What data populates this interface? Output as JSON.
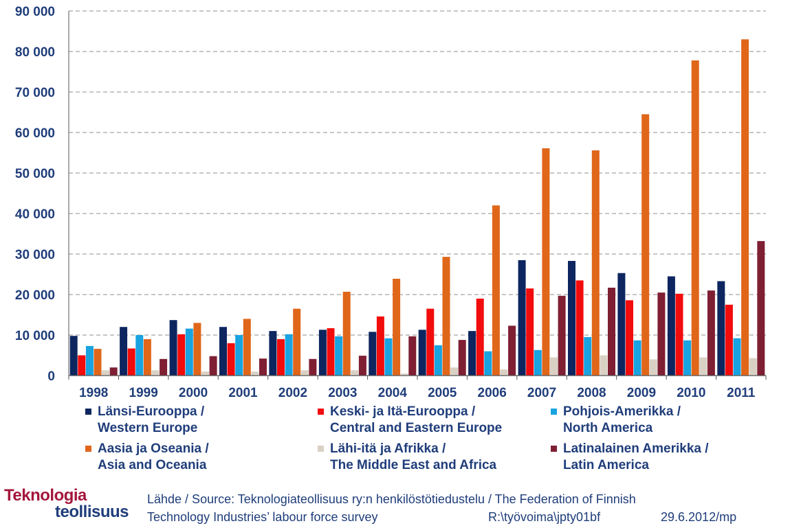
{
  "chart_data": {
    "type": "bar",
    "categories": [
      "1998",
      "1999",
      "2000",
      "2001",
      "2002",
      "2003",
      "2004",
      "2005",
      "2006",
      "2007",
      "2008",
      "2009",
      "2010",
      "2011"
    ],
    "ylim": [
      0,
      90000
    ],
    "yticks": [
      "0",
      "10 000",
      "20 000",
      "30 000",
      "40 000",
      "50 000",
      "60 000",
      "70 000",
      "80 000",
      "90 000"
    ],
    "grid": true,
    "legend_placement": "bottom",
    "series": [
      {
        "name_fi": "Länsi-Eurooppa /",
        "name_en": "Western Europe",
        "color": "#0d2660",
        "values": [
          9800,
          12000,
          13700,
          12000,
          11000,
          11300,
          10800,
          11300,
          11000,
          28500,
          28300,
          25300,
          24500,
          23300
        ]
      },
      {
        "name_fi": "Keski- ja Itä-Eurooppa /",
        "name_en": "Central and Eastern Europe",
        "color": "#f20c0c",
        "values": [
          5000,
          6700,
          10200,
          8000,
          9000,
          11700,
          14600,
          16500,
          19000,
          21500,
          23500,
          18600,
          20200,
          17500
        ]
      },
      {
        "name_fi": "Pohjois-Amerikka /",
        "name_en": "North America",
        "color": "#19a3e0",
        "values": [
          7300,
          10000,
          11600,
          10000,
          10200,
          9700,
          9200,
          7500,
          6000,
          6300,
          9500,
          8700,
          8700,
          9200
        ]
      },
      {
        "name_fi": "Aasia ja Oseania /",
        "name_en": "Asia and Oceania",
        "color": "#e0661a",
        "values": [
          6600,
          9000,
          13000,
          14000,
          16500,
          20700,
          23900,
          29300,
          42000,
          56100,
          55600,
          64500,
          77800,
          83000
        ]
      },
      {
        "name_fi": "Lähi-itä ja Afrikka /",
        "name_en": "The Middle East and Africa",
        "color": "#d9d1c4",
        "values": [
          1300,
          1300,
          1000,
          1000,
          1300,
          1300,
          500,
          2000,
          1500,
          4500,
          5000,
          4000,
          4500,
          4300
        ]
      },
      {
        "name_fi": "Latinalainen Amerikka /",
        "name_en": "Latin America",
        "color": "#7f1f33",
        "values": [
          2000,
          4100,
          4800,
          4200,
          4100,
          4900,
          9700,
          8800,
          12300,
          19700,
          21700,
          20500,
          21000,
          33200
        ]
      }
    ]
  },
  "footer": {
    "logo_line1": "Teknologia",
    "logo_line2": "teollisuus",
    "source_line1": "Lähde / Source: Teknologiateollisuus ry:n henkilöstötiedustelu / The Federation of Finnish",
    "source_line2": "Technology Industries’ labour force survey",
    "file_path": "R:\\työvoima\\jpty01bf",
    "date": "29.6.2012/mp"
  },
  "colors": {
    "axis_text": "#1f3d7a",
    "gridline": "#8c8c8c",
    "logo_red": "#a4163b"
  }
}
